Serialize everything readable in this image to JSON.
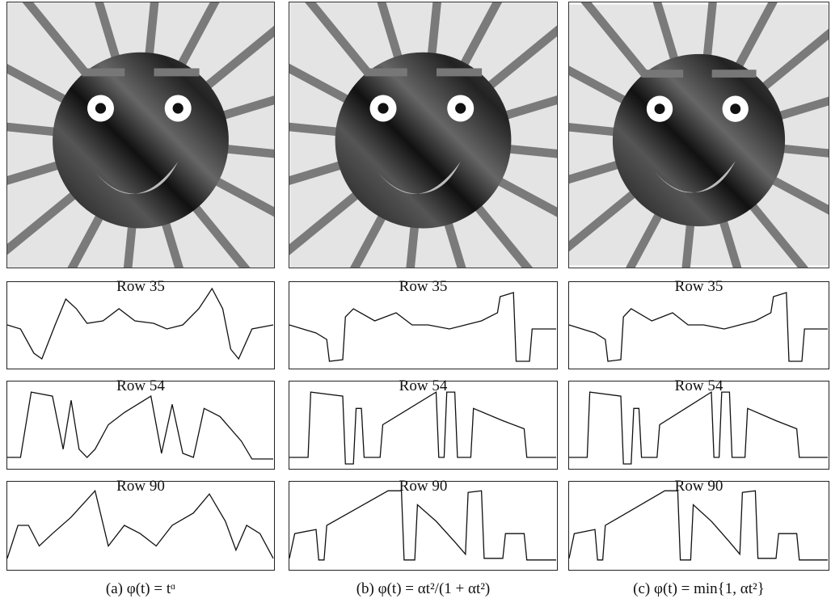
{
  "panels": [
    {
      "plots": [
        {
          "label": "Row 35"
        },
        {
          "label": "Row 54"
        },
        {
          "label": "Row 90"
        }
      ],
      "caption": "(a) φ(t) = tᵅ"
    },
    {
      "plots": [
        {
          "label": "Row 35"
        },
        {
          "label": "Row 54"
        },
        {
          "label": "Row 90"
        }
      ],
      "caption": "(b) φ(t) = αt²/(1 + αt²)"
    },
    {
      "plots": [
        {
          "label": "Row 35"
        },
        {
          "label": "Row 54"
        },
        {
          "label": "Row 90"
        }
      ],
      "caption": "(c) φ(t) = min{1, αt²}"
    }
  ]
}
